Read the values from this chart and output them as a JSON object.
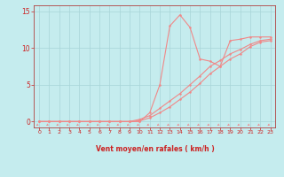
{
  "xlabel": "Vent moyen/en rafales ( km/h )",
  "bg_color": "#c5ecee",
  "line_color": "#f08888",
  "grid_color": "#a8d4d8",
  "axis_color": "#b04040",
  "text_color": "#cc2222",
  "xlim": [
    -0.5,
    23.5
  ],
  "ylim": [
    -0.8,
    15.8
  ],
  "yticks": [
    0,
    5,
    10,
    15
  ],
  "xticks": [
    0,
    1,
    2,
    3,
    4,
    5,
    6,
    7,
    8,
    9,
    10,
    11,
    12,
    13,
    14,
    15,
    16,
    17,
    18,
    19,
    20,
    21,
    22,
    23
  ],
  "line1_x": [
    0,
    1,
    2,
    3,
    4,
    5,
    6,
    7,
    8,
    9,
    10,
    11,
    12,
    13,
    14,
    15,
    16,
    17,
    18,
    19,
    20,
    21,
    22,
    23
  ],
  "line1_y": [
    0,
    0,
    0,
    0,
    0,
    0,
    0,
    0,
    0,
    0,
    0,
    1.2,
    5.0,
    13.0,
    14.5,
    12.8,
    8.5,
    8.2,
    7.5,
    11.0,
    11.2,
    11.5,
    11.5,
    11.5
  ],
  "line2_x": [
    0,
    1,
    2,
    3,
    4,
    5,
    6,
    7,
    8,
    9,
    10,
    11,
    12,
    13,
    14,
    15,
    16,
    17,
    18,
    19,
    20,
    21,
    22,
    23
  ],
  "line2_y": [
    0,
    0,
    0,
    0,
    0,
    0,
    0,
    0,
    0,
    0,
    0.3,
    0.8,
    1.8,
    2.8,
    3.8,
    5.0,
    6.2,
    7.5,
    8.3,
    9.2,
    9.8,
    10.5,
    11.0,
    11.2
  ],
  "line3_x": [
    0,
    1,
    2,
    3,
    4,
    5,
    6,
    7,
    8,
    9,
    10,
    11,
    12,
    13,
    14,
    15,
    16,
    17,
    18,
    19,
    20,
    21,
    22,
    23
  ],
  "line3_y": [
    0,
    0,
    0,
    0,
    0,
    0,
    0,
    0,
    0,
    0,
    0.1,
    0.5,
    1.2,
    2.0,
    3.0,
    4.0,
    5.2,
    6.5,
    7.5,
    8.5,
    9.2,
    10.2,
    10.8,
    11.0
  ],
  "figsize": [
    3.2,
    2.0
  ],
  "dpi": 100
}
